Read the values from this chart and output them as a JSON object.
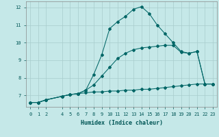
{
  "xlabel": "Humidex (Indice chaleur)",
  "xlim": [
    -0.5,
    23.5
  ],
  "ylim": [
    6.35,
    12.35
  ],
  "yticks": [
    7,
    8,
    9,
    10,
    11,
    12
  ],
  "xticks": [
    0,
    1,
    2,
    4,
    5,
    6,
    7,
    8,
    9,
    10,
    11,
    12,
    13,
    14,
    15,
    16,
    17,
    18,
    19,
    20,
    21,
    22,
    23
  ],
  "bg_color": "#c5e8e8",
  "grid_color": "#a8cccc",
  "line_color": "#006666",
  "line_flat_x": [
    0,
    1,
    2,
    4,
    5,
    6,
    7,
    8,
    9,
    10,
    11,
    12,
    13,
    14,
    15,
    16,
    17,
    18,
    19,
    20,
    21,
    22,
    23
  ],
  "line_flat_y": [
    6.6,
    6.6,
    6.75,
    6.95,
    7.05,
    7.1,
    7.15,
    7.2,
    7.2,
    7.25,
    7.25,
    7.3,
    7.3,
    7.35,
    7.35,
    7.4,
    7.45,
    7.5,
    7.55,
    7.6,
    7.65,
    7.65,
    7.65
  ],
  "line_tri_x": [
    0,
    1,
    2,
    4,
    5,
    6,
    7,
    8,
    9,
    10,
    11,
    12,
    13,
    14,
    15,
    16,
    17,
    18,
    19,
    20,
    21,
    22,
    23
  ],
  "line_tri_y": [
    6.6,
    6.6,
    6.75,
    6.95,
    7.05,
    7.1,
    7.3,
    7.6,
    8.1,
    8.6,
    9.1,
    9.4,
    9.6,
    9.7,
    9.75,
    9.8,
    9.85,
    9.85,
    9.45,
    9.4,
    9.5,
    7.65,
    7.65
  ],
  "line_peak_x": [
    0,
    1,
    2,
    4,
    5,
    6,
    7,
    8,
    9,
    10,
    11,
    12,
    13,
    14,
    15,
    16,
    17,
    18,
    19,
    20,
    21,
    22,
    23
  ],
  "line_peak_y": [
    6.6,
    6.6,
    6.75,
    6.95,
    7.05,
    7.1,
    7.3,
    8.2,
    9.3,
    10.8,
    11.2,
    11.5,
    11.9,
    12.05,
    11.65,
    11.0,
    10.5,
    10.0,
    9.5,
    9.4,
    9.5,
    7.65,
    7.65
  ]
}
